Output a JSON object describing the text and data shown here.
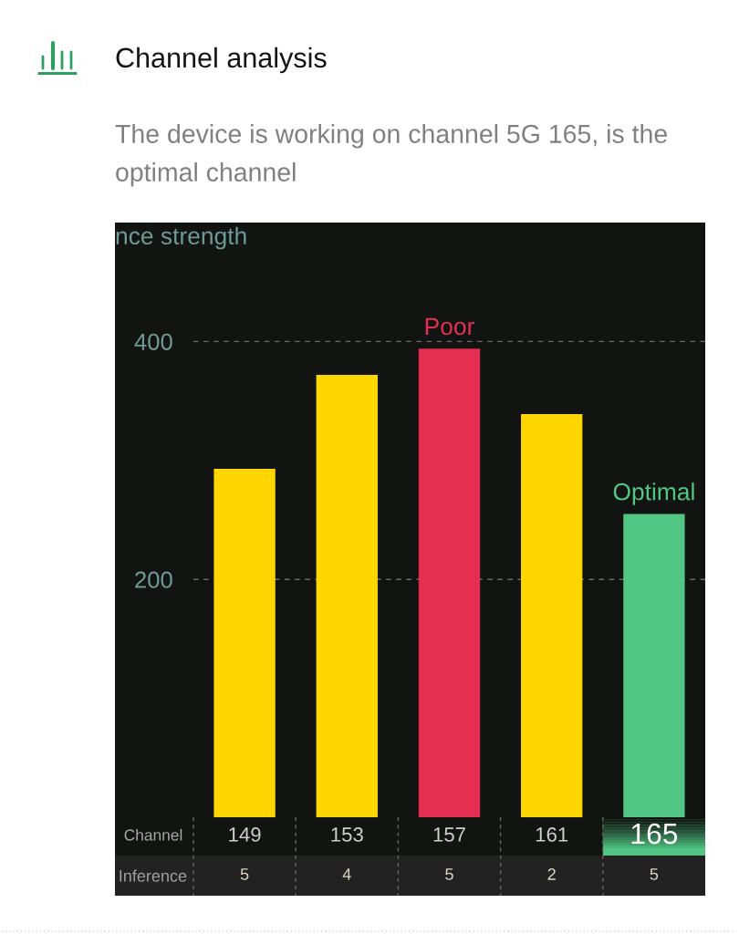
{
  "chart_data": [
    {
      "type": "bar",
      "title": "Channel analysis",
      "subtitle": "The device is working on channel 5G 165, is the optimal channel",
      "xlabel": "Channel",
      "ylabel": "nce strength",
      "categories": [
        "149",
        "153",
        "157",
        "161",
        "165"
      ],
      "values": [
        293,
        372,
        394,
        339,
        255
      ],
      "colors": [
        "#ffd600",
        "#ffd600",
        "#e52f52",
        "#ffd600",
        "#52c785"
      ],
      "ylim": [
        0,
        500
      ],
      "yticks": [
        200,
        400
      ],
      "grid": "y",
      "annotations": [
        {
          "text": "Poor",
          "x": "157",
          "y": 394
        },
        {
          "text": "Optimal",
          "x": "165",
          "y": 255
        }
      ]
    },
    {
      "type": "heatmap",
      "categories": [
        "149",
        "153",
        "157",
        "161",
        "165"
      ],
      "y_categories": [
        "Inference"
      ],
      "cells": [
        [
          5,
          4,
          5,
          2,
          5
        ]
      ],
      "data_labels": true,
      "tick_labels": "y"
    }
  ]
}
